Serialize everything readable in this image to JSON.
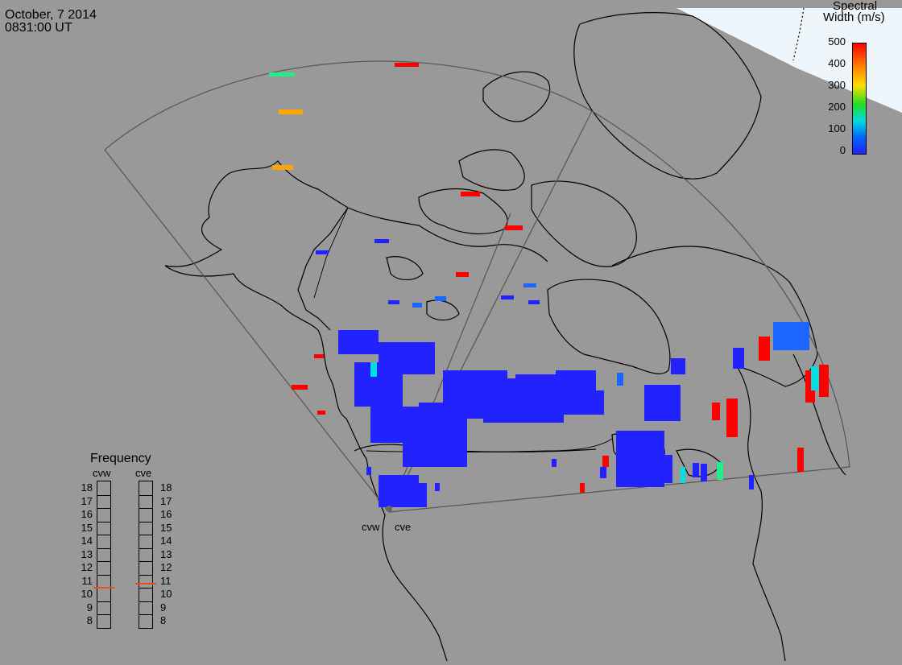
{
  "header": {
    "date": "October, 7 2014",
    "time": "0831:00 UT"
  },
  "colorbar": {
    "title_line1": "Spectral",
    "title_line2": "Width (m/s)",
    "ticks": [
      "500",
      "400",
      "300",
      "200",
      "100",
      "0"
    ],
    "stops": [
      "#ff0000",
      "#ff8800",
      "#ffff00",
      "#22dd22",
      "#00dddd",
      "#0066ff",
      "#2222ff"
    ]
  },
  "radars": {
    "west_label": "cvw",
    "east_label": "cve"
  },
  "frequency": {
    "title": "Frequency",
    "col_west": "cvw",
    "col_east": "cve",
    "levels": [
      "18",
      "17",
      "16",
      "15",
      "14",
      "13",
      "12",
      "11",
      "10",
      "9",
      "8"
    ],
    "west_value": 10.5,
    "east_value": 10.8,
    "marker_color": "#e8501a"
  },
  "colors": {
    "ocean": "#999999",
    "daylight": "#eef6fb",
    "coast": "#000000",
    "fov": "#555555",
    "low_width": "#2222ff",
    "high_width": "#ff0000"
  }
}
